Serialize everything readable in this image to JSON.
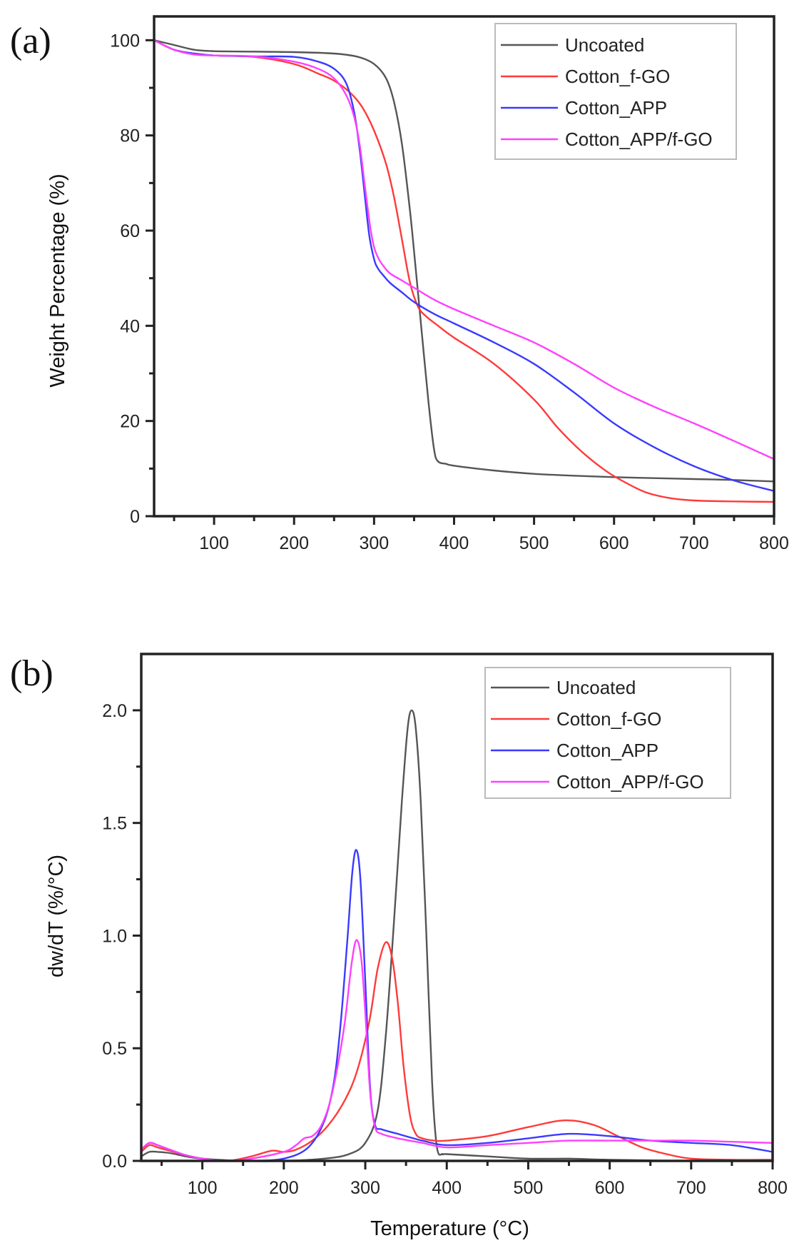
{
  "figure": {
    "panels": [
      "(a)",
      "(b)"
    ]
  },
  "chart_data": [
    {
      "type": "line",
      "panel": "(a)",
      "title": "",
      "xlabel": "",
      "ylabel": "Weight Percentage (%)",
      "xlim": [
        25,
        800
      ],
      "ylim": [
        0,
        105
      ],
      "xticks": [
        100,
        200,
        300,
        400,
        500,
        600,
        700,
        800
      ],
      "yticks": [
        0,
        20,
        40,
        60,
        80,
        100
      ],
      "xtick_labels": [
        "100",
        "200",
        "300",
        "400",
        "500",
        "600",
        "700",
        "800"
      ],
      "ytick_labels": [
        "0",
        "20",
        "40",
        "60",
        "80",
        "100"
      ],
      "grid": false,
      "legend": "top-right",
      "series": [
        {
          "name": "Uncoated",
          "color": "#555555",
          "x": [
            25,
            50,
            75,
            100,
            150,
            200,
            250,
            280,
            300,
            315,
            325,
            335,
            345,
            352,
            360,
            368,
            375,
            380,
            390,
            400,
            450,
            500,
            550,
            600,
            650,
            700,
            750,
            800
          ],
          "y": [
            100,
            99.0,
            98.0,
            97.7,
            97.6,
            97.5,
            97.2,
            96.5,
            95.0,
            92.0,
            87.0,
            78.0,
            64.0,
            52.0,
            38.0,
            24.0,
            14.0,
            11.5,
            11.0,
            10.6,
            9.6,
            8.9,
            8.5,
            8.2,
            8.0,
            7.8,
            7.6,
            7.3
          ]
        },
        {
          "name": "Cotton_f-GO",
          "color": "#ff3a3a",
          "x": [
            25,
            50,
            75,
            100,
            150,
            200,
            230,
            250,
            270,
            285,
            300,
            315,
            325,
            335,
            345,
            355,
            365,
            380,
            400,
            450,
            500,
            530,
            560,
            590,
            615,
            640,
            670,
            700,
            750,
            800
          ],
          "y": [
            100,
            98.0,
            97.2,
            96.8,
            96.5,
            95.0,
            93.0,
            91.5,
            89.0,
            86.0,
            81.0,
            74.0,
            67.0,
            58.0,
            49.0,
            44.0,
            42.0,
            40.0,
            37.5,
            32.0,
            24.5,
            18.5,
            13.5,
            9.5,
            7.0,
            5.0,
            3.8,
            3.3,
            3.1,
            3.0
          ]
        },
        {
          "name": "Cotton_APP",
          "color": "#3a3aff",
          "x": [
            25,
            50,
            75,
            100,
            150,
            200,
            230,
            250,
            265,
            275,
            282,
            288,
            294,
            300,
            305,
            312,
            320,
            335,
            350,
            375,
            400,
            450,
            500,
            550,
            600,
            650,
            700,
            750,
            800
          ],
          "y": [
            100,
            98.0,
            97.2,
            96.8,
            96.6,
            96.5,
            95.5,
            94.0,
            91.0,
            85.0,
            77.0,
            68.0,
            59.0,
            54.0,
            52.0,
            50.5,
            49.0,
            47.0,
            45.0,
            42.5,
            40.5,
            36.5,
            32.0,
            26.0,
            19.5,
            14.5,
            10.5,
            7.5,
            5.3
          ]
        },
        {
          "name": "Cotton_APP/f-GO",
          "color": "#ff40ff",
          "x": [
            25,
            50,
            75,
            100,
            150,
            200,
            230,
            250,
            265,
            275,
            282,
            288,
            295,
            300,
            306,
            312,
            320,
            335,
            350,
            375,
            400,
            450,
            500,
            550,
            600,
            650,
            700,
            750,
            800
          ],
          "y": [
            100,
            98.0,
            97.0,
            96.8,
            96.6,
            95.5,
            94.0,
            92.0,
            88.5,
            84.0,
            78.0,
            70.0,
            61.0,
            56.5,
            54.0,
            52.5,
            51.0,
            49.5,
            48.0,
            45.5,
            43.5,
            40.0,
            36.5,
            32.0,
            27.0,
            23.0,
            19.5,
            15.8,
            12.0
          ]
        }
      ]
    },
    {
      "type": "line",
      "panel": "(b)",
      "title": "",
      "xlabel": "Temperature (°C)",
      "ylabel": "dw/dT (%/°C)",
      "xlim": [
        25,
        800
      ],
      "ylim": [
        0,
        2.25
      ],
      "xticks": [
        100,
        200,
        300,
        400,
        500,
        600,
        700,
        800
      ],
      "yticks": [
        0.0,
        0.5,
        1.0,
        1.5,
        2.0
      ],
      "xtick_labels": [
        "100",
        "200",
        "300",
        "400",
        "500",
        "600",
        "700",
        "800"
      ],
      "ytick_labels": [
        "0.0",
        "0.5",
        "1.0",
        "1.5",
        "2.0"
      ],
      "grid": false,
      "legend": "top-right",
      "series": [
        {
          "name": "Uncoated",
          "color": "#555555",
          "x": [
            25,
            35,
            45,
            60,
            80,
            100,
            150,
            200,
            250,
            280,
            300,
            315,
            325,
            335,
            345,
            352,
            357,
            362,
            368,
            375,
            382,
            388,
            395,
            400,
            450,
            500,
            550,
            600,
            700,
            800
          ],
          "y": [
            0.02,
            0.04,
            0.04,
            0.035,
            0.02,
            0.01,
            0.0,
            0.0,
            0.01,
            0.03,
            0.08,
            0.22,
            0.55,
            1.05,
            1.6,
            1.92,
            2.0,
            1.92,
            1.6,
            1.0,
            0.35,
            0.06,
            0.03,
            0.03,
            0.02,
            0.01,
            0.01,
            0.005,
            0.0,
            0.0
          ]
        },
        {
          "name": "Cotton_f-GO",
          "color": "#ff3a3a",
          "x": [
            25,
            35,
            45,
            60,
            80,
            100,
            130,
            160,
            185,
            200,
            215,
            235,
            255,
            275,
            290,
            305,
            315,
            325,
            333,
            340,
            347,
            355,
            362,
            370,
            385,
            400,
            450,
            500,
            545,
            580,
            610,
            640,
            670,
            700,
            750,
            800
          ],
          "y": [
            0.04,
            0.07,
            0.06,
            0.045,
            0.025,
            0.01,
            0.0,
            0.02,
            0.045,
            0.04,
            0.05,
            0.09,
            0.16,
            0.27,
            0.4,
            0.62,
            0.85,
            0.97,
            0.9,
            0.7,
            0.42,
            0.2,
            0.12,
            0.1,
            0.09,
            0.09,
            0.11,
            0.15,
            0.18,
            0.16,
            0.11,
            0.06,
            0.03,
            0.01,
            0.005,
            0.005
          ]
        },
        {
          "name": "Cotton_APP",
          "color": "#3a3aff",
          "x": [
            25,
            35,
            45,
            60,
            80,
            100,
            130,
            160,
            200,
            230,
            250,
            262,
            270,
            278,
            284,
            289,
            294,
            300,
            306,
            312,
            320,
            340,
            370,
            400,
            450,
            500,
            550,
            600,
            650,
            700,
            750,
            800
          ],
          "y": [
            0.05,
            0.08,
            0.07,
            0.05,
            0.025,
            0.01,
            0.0,
            0.0,
            0.01,
            0.06,
            0.18,
            0.36,
            0.62,
            0.98,
            1.28,
            1.38,
            1.25,
            0.8,
            0.32,
            0.16,
            0.14,
            0.12,
            0.09,
            0.07,
            0.08,
            0.1,
            0.12,
            0.11,
            0.09,
            0.08,
            0.07,
            0.04
          ]
        },
        {
          "name": "Cotton_APP/f-GO",
          "color": "#ff40ff",
          "x": [
            25,
            35,
            45,
            60,
            80,
            100,
            130,
            160,
            200,
            215,
            225,
            235,
            245,
            255,
            265,
            275,
            283,
            289,
            295,
            300,
            306,
            312,
            320,
            340,
            370,
            400,
            450,
            500,
            550,
            600,
            650,
            700,
            750,
            800
          ],
          "y": [
            0.05,
            0.08,
            0.07,
            0.05,
            0.025,
            0.01,
            0.0,
            0.01,
            0.04,
            0.07,
            0.1,
            0.11,
            0.15,
            0.24,
            0.4,
            0.62,
            0.87,
            0.98,
            0.9,
            0.66,
            0.3,
            0.15,
            0.12,
            0.1,
            0.08,
            0.06,
            0.07,
            0.08,
            0.09,
            0.09,
            0.09,
            0.09,
            0.085,
            0.08
          ]
        }
      ]
    }
  ]
}
